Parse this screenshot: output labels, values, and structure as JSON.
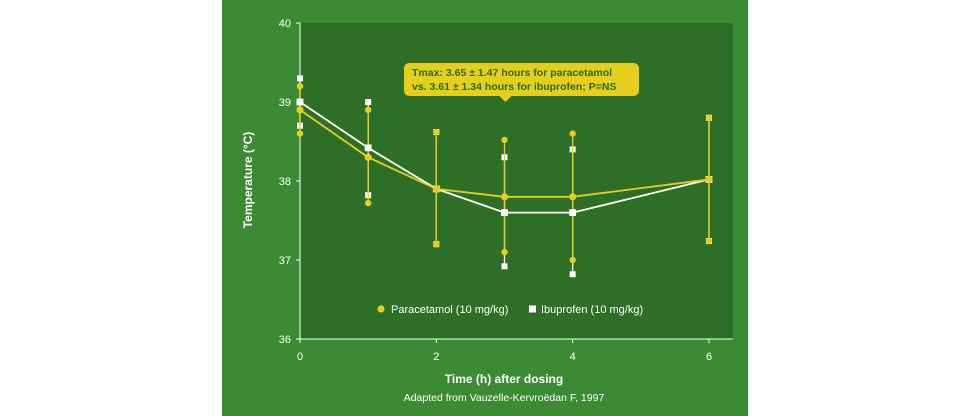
{
  "chart_data": {
    "type": "line",
    "xlabel": "Time (h) after dosing",
    "ylabel": "Temperature (°C)",
    "xlim": [
      0,
      6.2
    ],
    "ylim": [
      36,
      40
    ],
    "x_ticks": [
      0,
      2,
      4,
      6
    ],
    "y_ticks": [
      36,
      37,
      38,
      39,
      40
    ],
    "grid": false,
    "legend_position": "bottom-center",
    "series": [
      {
        "name": "Paracetamol (10 mg/kg)",
        "marker": "circle",
        "color": "#e6cf1c",
        "points": [
          {
            "x": 0,
            "y": 38.9,
            "low": 38.6,
            "high": 39.2
          },
          {
            "x": 1,
            "y": 38.3,
            "low": 37.72,
            "high": 38.9
          },
          {
            "x": 2,
            "y": 37.9,
            "low": 37.2,
            "high": 38.62
          },
          {
            "x": 3,
            "y": 37.8,
            "low": 37.1,
            "high": 38.52
          },
          {
            "x": 4,
            "y": 37.8,
            "low": 37.0,
            "high": 38.6
          },
          {
            "x": 6,
            "y": 38.02,
            "low": 37.24,
            "high": 38.8
          }
        ]
      },
      {
        "name": "Ibuprofen (10 mg/kg)",
        "marker": "square",
        "color": "#ffffff",
        "points": [
          {
            "x": 0,
            "y": 39.0,
            "low": 38.7,
            "high": 39.3
          },
          {
            "x": 1,
            "y": 38.42,
            "low": 37.82,
            "high": 39.0
          },
          {
            "x": 2,
            "y": 37.9,
            "low": 37.2,
            "high": 38.62
          },
          {
            "x": 3,
            "y": 37.6,
            "low": 36.92,
            "high": 38.3
          },
          {
            "x": 4,
            "y": 37.6,
            "low": 36.82,
            "high": 38.4
          },
          {
            "x": 6,
            "y": 38.02,
            "low": 37.24,
            "high": 38.8
          }
        ]
      }
    ],
    "annotation": {
      "lines": [
        "Tmax: 3.65 ± 1.47 hours for paracetamol",
        "vs. 3.61 ± 1.34 hours for ibuprofen; P=NS"
      ],
      "anchor_x": 3,
      "anchor_y": 39.0
    },
    "source": "Adapted from Vauzelle-Kervroëdan F, 1997"
  },
  "colors": {
    "panel_background": "#3c8a34",
    "plot_background": "#2e6f27",
    "axis": "#ffffff",
    "callout_fill": "#e6cf1c",
    "callout_text": "#2e6a22"
  }
}
